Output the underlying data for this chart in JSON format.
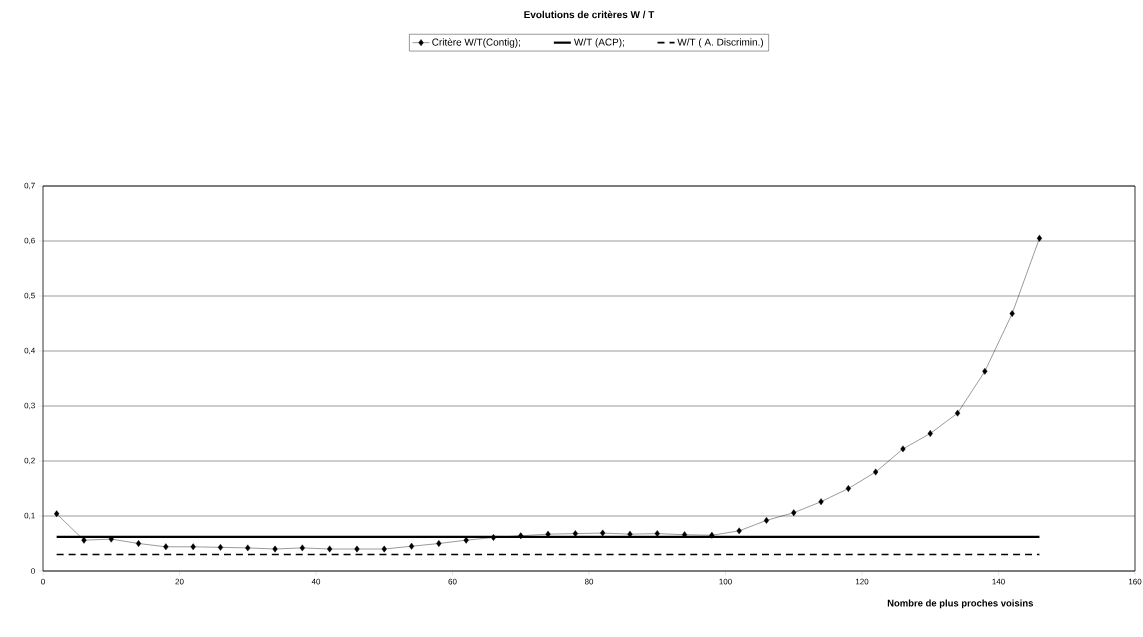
{
  "chart_data": {
    "type": "line",
    "title": "Evolutions de critères W / T",
    "xlabel": "Nombre de plus proches voisins",
    "xlim": [
      0,
      160
    ],
    "xticks": [
      0,
      20,
      40,
      60,
      80,
      100,
      120,
      140,
      160
    ],
    "ylim": [
      0,
      0.7
    ],
    "yticks": [
      {
        "value": 0,
        "label": "0"
      },
      {
        "value": 0.1,
        "label": "0,1"
      },
      {
        "value": 0.2,
        "label": "0,2"
      },
      {
        "value": 0.3,
        "label": "0,3"
      },
      {
        "value": 0.4,
        "label": "0,4"
      },
      {
        "value": 0.5,
        "label": "0,5"
      },
      {
        "value": 0.6,
        "label": "0,6"
      },
      {
        "value": 0.7,
        "label": "0,7"
      }
    ],
    "grid": "y",
    "legend": "top",
    "x": [
      2,
      6,
      10,
      14,
      18,
      22,
      26,
      30,
      34,
      38,
      42,
      46,
      50,
      54,
      58,
      62,
      66,
      70,
      74,
      78,
      82,
      86,
      90,
      94,
      98,
      102,
      106,
      110,
      114,
      118,
      122,
      126,
      130,
      134,
      138,
      142,
      146
    ],
    "series": [
      {
        "name": "Critère W/T(Contig);",
        "color": "#000000",
        "marker": "diamond",
        "line_style": "solid",
        "values": [
          0.104,
          0.056,
          0.058,
          0.05,
          0.044,
          0.044,
          0.043,
          0.042,
          0.04,
          0.042,
          0.04,
          0.04,
          0.04,
          0.045,
          0.05,
          0.056,
          0.061,
          0.064,
          0.067,
          0.068,
          0.069,
          0.067,
          0.068,
          0.066,
          0.065,
          0.073,
          0.092,
          0.106,
          0.126,
          0.15,
          0.18,
          0.222,
          0.25,
          0.287,
          0.363,
          0.468,
          0.605
        ]
      },
      {
        "name": "W/T (ACP);",
        "color": "#000000",
        "marker": "none",
        "line_style": "solid",
        "values": [
          0.062,
          0.062,
          0.062,
          0.062,
          0.062,
          0.062,
          0.062,
          0.062,
          0.062,
          0.062,
          0.062,
          0.062,
          0.062,
          0.062,
          0.062,
          0.062,
          0.062,
          0.062,
          0.062,
          0.062,
          0.062,
          0.062,
          0.062,
          0.062,
          0.062,
          0.062,
          0.062,
          0.062,
          0.062,
          0.062,
          0.062,
          0.062,
          0.062,
          0.062,
          0.062,
          0.062,
          0.062
        ]
      },
      {
        "name": "W/T ( A. Discrimin.)",
        "color": "#000000",
        "marker": "none",
        "line_style": "dashed",
        "values": [
          0.03,
          0.03,
          0.03,
          0.03,
          0.03,
          0.03,
          0.03,
          0.03,
          0.03,
          0.03,
          0.03,
          0.03,
          0.03,
          0.03,
          0.03,
          0.03,
          0.03,
          0.03,
          0.03,
          0.03,
          0.03,
          0.03,
          0.03,
          0.03,
          0.03,
          0.03,
          0.03,
          0.03,
          0.03,
          0.03,
          0.03,
          0.03,
          0.03,
          0.03,
          0.03,
          0.03,
          0.03
        ]
      }
    ]
  }
}
